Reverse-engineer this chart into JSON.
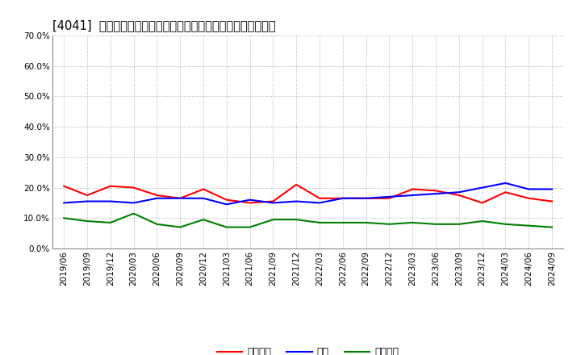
{
  "title": "[4041]  売上債権、在庫、買入債務の総資産に対する比率の推移",
  "x_labels": [
    "2019/06",
    "2019/09",
    "2019/12",
    "2020/03",
    "2020/06",
    "2020/09",
    "2020/12",
    "2021/03",
    "2021/06",
    "2021/09",
    "2021/12",
    "2022/03",
    "2022/06",
    "2022/09",
    "2022/12",
    "2023/03",
    "2023/06",
    "2023/09",
    "2023/12",
    "2024/03",
    "2024/06",
    "2024/09"
  ],
  "urikake": [
    20.5,
    17.5,
    20.5,
    20.0,
    17.5,
    16.5,
    19.5,
    16.0,
    15.0,
    15.5,
    21.0,
    16.5,
    16.5,
    16.5,
    16.5,
    19.5,
    19.0,
    17.5,
    15.0,
    18.5,
    16.5,
    15.5
  ],
  "zaiko": [
    15.0,
    15.5,
    15.5,
    15.0,
    16.5,
    16.5,
    16.5,
    14.5,
    16.0,
    15.0,
    15.5,
    15.0,
    16.5,
    16.5,
    17.0,
    17.5,
    18.0,
    18.5,
    20.0,
    21.5,
    19.5,
    19.5
  ],
  "kaiire": [
    10.0,
    9.0,
    8.5,
    11.5,
    8.0,
    7.0,
    9.5,
    7.0,
    7.0,
    9.5,
    9.5,
    8.5,
    8.5,
    8.5,
    8.0,
    8.5,
    8.0,
    8.0,
    9.0,
    8.0,
    7.5,
    7.0
  ],
  "urikake_color": "#ff0000",
  "zaiko_color": "#0000ff",
  "kaiire_color": "#008000",
  "urikake_label": "売上債権",
  "zaiko_label": "在庫",
  "kaiire_label": "買入債務",
  "ylim": [
    0.0,
    70.0
  ],
  "yticks": [
    0.0,
    10.0,
    20.0,
    30.0,
    40.0,
    50.0,
    60.0,
    70.0
  ],
  "background_color": "#ffffff",
  "grid_color": "#999999",
  "title_fontsize": 10.5,
  "tick_fontsize": 7.5,
  "legend_fontsize": 9,
  "line_width": 1.5
}
